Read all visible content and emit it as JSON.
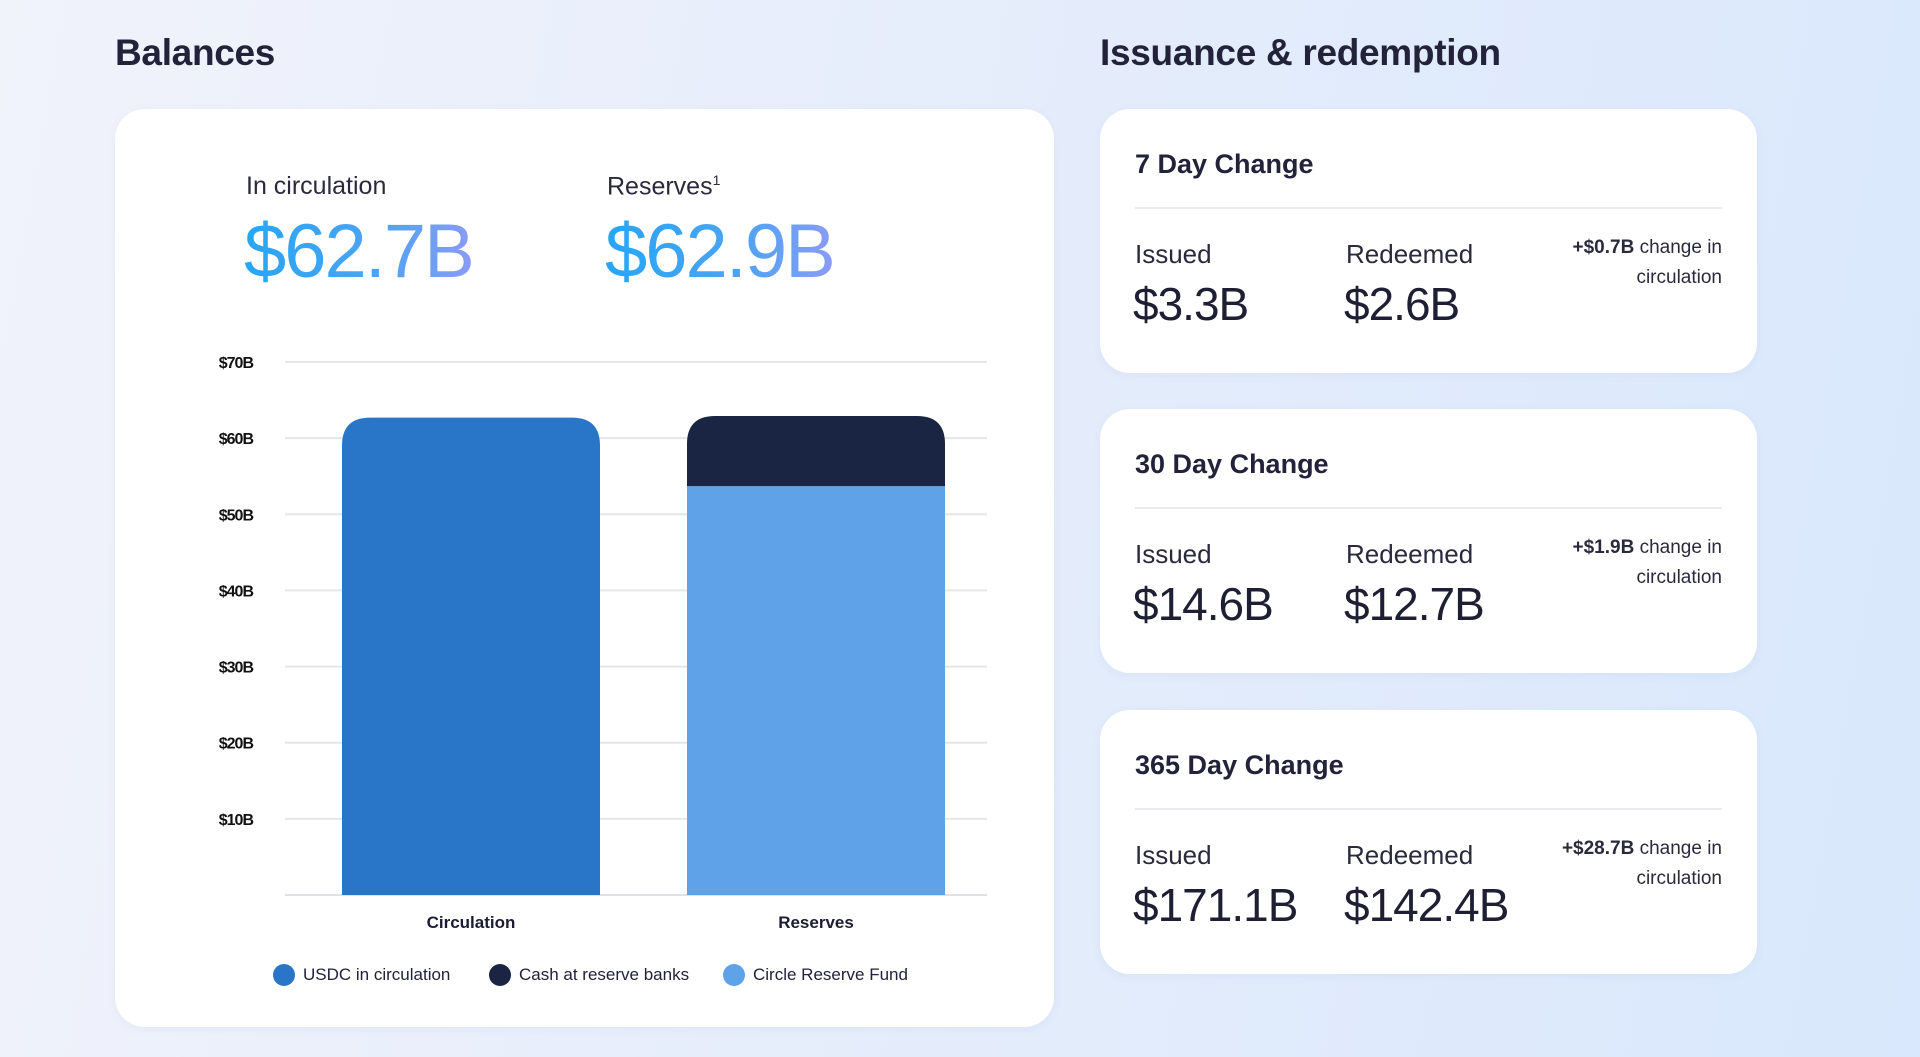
{
  "balances": {
    "title": "Balances",
    "in_circulation_label": "In circulation",
    "in_circulation_value": "$62.7B",
    "reserves_label": "Reserves",
    "reserves_footnote": "1",
    "reserves_value": "$62.9B"
  },
  "chart_data": {
    "type": "bar",
    "stacked": true,
    "categories": [
      "Circulation",
      "Reserves"
    ],
    "series": [
      {
        "name": "USDC in circulation",
        "color": "#2976C8",
        "values": [
          62.7,
          0
        ]
      },
      {
        "name": "Circle Reserve Fund",
        "color": "#5FA2E8",
        "values": [
          0,
          53.7
        ]
      },
      {
        "name": "Cash at reserve banks",
        "color": "#1A2544",
        "values": [
          0,
          9.2
        ]
      }
    ],
    "yticks": [
      "$10B",
      "$20B",
      "$30B",
      "$40B",
      "$50B",
      "$60B",
      "$70B"
    ],
    "ytick_values": [
      10,
      20,
      30,
      40,
      50,
      60,
      70
    ],
    "ylim": [
      0,
      70
    ],
    "grid": true,
    "legend_placement": "bottom",
    "legend": [
      "USDC in circulation",
      "Cash at reserve banks",
      "Circle Reserve Fund"
    ],
    "legend_colors": [
      "#2976C8",
      "#1A2544",
      "#5FA2E8"
    ]
  },
  "issuance": {
    "title": "Issuance & redemption",
    "cards": [
      {
        "title": "7 Day Change",
        "issued_label": "Issued",
        "issued": "$3.3B",
        "redeemed_label": "Redeemed",
        "redeemed": "$2.6B",
        "change": "+$0.7B",
        "change_text": "change in circulation"
      },
      {
        "title": "30 Day Change",
        "issued_label": "Issued",
        "issued": "$14.6B",
        "redeemed_label": "Redeemed",
        "redeemed": "$12.7B",
        "change": "+$1.9B",
        "change_text": "change in circulation"
      },
      {
        "title": "365 Day Change",
        "issued_label": "Issued",
        "issued": "$171.1B",
        "redeemed_label": "Redeemed",
        "redeemed": "$142.4B",
        "change": "+$28.7B",
        "change_text": "change in circulation"
      }
    ]
  }
}
